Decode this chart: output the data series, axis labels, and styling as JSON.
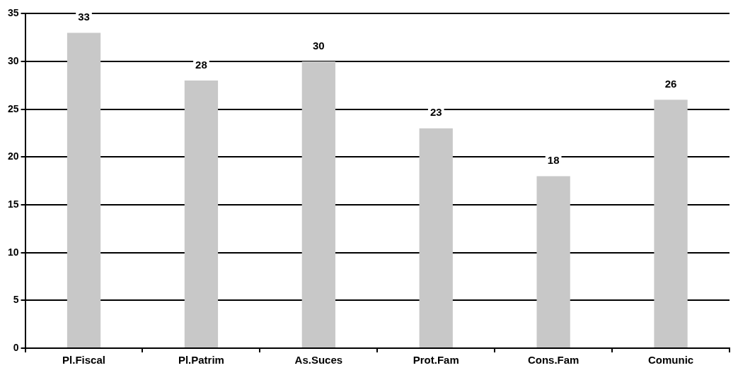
{
  "chart_data": {
    "type": "bar",
    "categories": [
      "Pl.Fiscal",
      "Pl.Patrim",
      "As.Suces",
      "Prot.Fam",
      "Cons.Fam",
      "Comunic"
    ],
    "values": [
      33,
      28,
      30,
      23,
      18,
      26
    ],
    "color": "#c8c8c8",
    "ylim": [
      0,
      35
    ],
    "yticks": [
      0,
      5,
      10,
      15,
      20,
      25,
      30,
      35
    ],
    "grid": "y",
    "data_labels": true,
    "legend": false
  }
}
